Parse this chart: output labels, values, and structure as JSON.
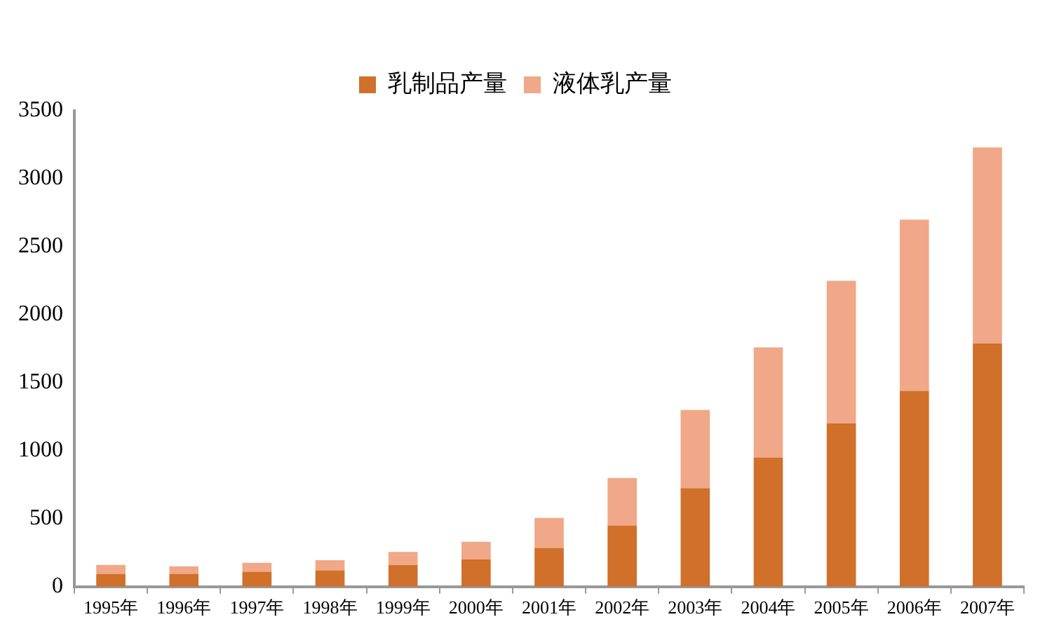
{
  "chart_data": {
    "type": "bar",
    "stacked": true,
    "categories": [
      "1995年",
      "1996年",
      "1997年",
      "1998年",
      "1999年",
      "2000年",
      "2001年",
      "2002年",
      "2003年",
      "2004年",
      "2005年",
      "2006年",
      "2007年"
    ],
    "series": [
      {
        "name": "乳制品产量",
        "color": "#d0702a",
        "values": [
          95,
          95,
          110,
          120,
          160,
          200,
          285,
          450,
          725,
          950,
          1200,
          1440,
          1790
        ]
      },
      {
        "name": "液体乳产量",
        "color": "#f0a888",
        "values": [
          65,
          55,
          65,
          75,
          95,
          130,
          220,
          350,
          575,
          810,
          1050,
          1260,
          1440
        ]
      }
    ],
    "ylim": [
      0,
      3500
    ],
    "yticks": [
      0,
      500,
      1000,
      1500,
      2000,
      2500,
      3000,
      3500
    ],
    "grid": false,
    "legend": "top"
  }
}
